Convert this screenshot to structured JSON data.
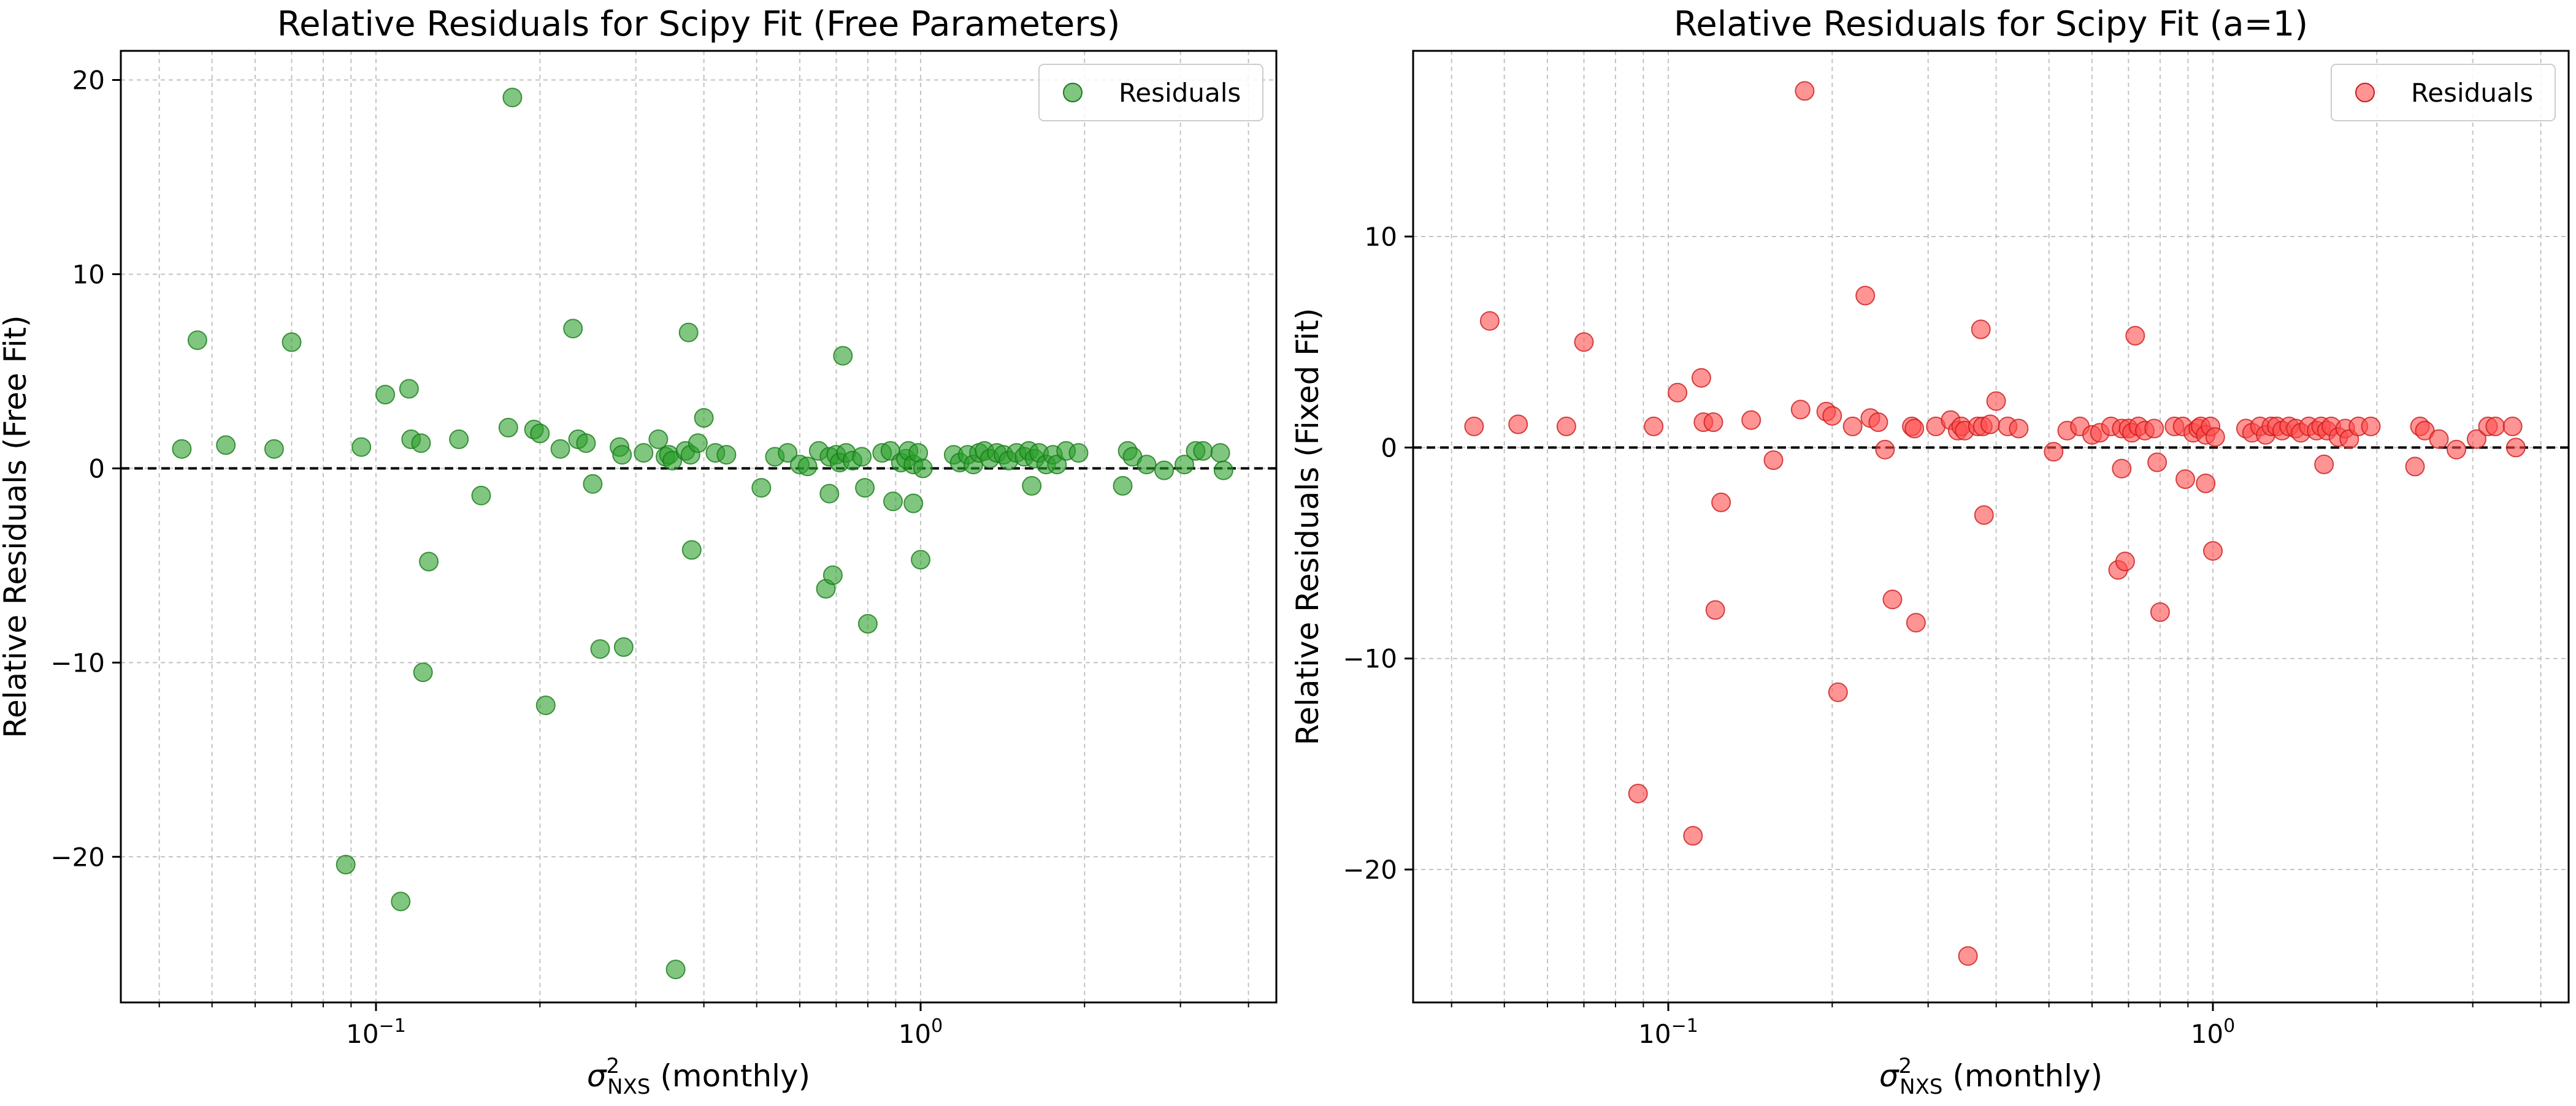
{
  "chart_data": [
    {
      "type": "scatter",
      "title": "Relative Residuals for Scipy Fit (Free Parameters)",
      "xlabel": "σ²NXS (monthly)",
      "xlabel_parts": {
        "symbol": "σ",
        "sup": "2",
        "sub": "NXS",
        "suffix": " (monthly)"
      },
      "ylabel": "Relative Residuals (Free Fit)",
      "xscale": "log",
      "xlim": [
        0.034,
        4.5
      ],
      "ylim": [
        -27.5,
        21.5
      ],
      "yticks": [
        -20,
        -10,
        0,
        10,
        20
      ],
      "yticklabels": [
        "−20",
        "−10",
        "0",
        "10",
        "20"
      ],
      "xticks": [
        {
          "value": 0.1,
          "base": "10",
          "exp": "−1"
        },
        {
          "value": 1,
          "base": "10",
          "exp": "0"
        }
      ],
      "grid": true,
      "reference_line": 0,
      "legend": {
        "position": "top-right",
        "label": "Residuals"
      },
      "color": "#2ca02c",
      "edge_color": "#1a7a1a",
      "series": [
        {
          "name": "Residuals",
          "points": [
            [
              0.044,
              1.0
            ],
            [
              0.047,
              6.6
            ],
            [
              0.053,
              1.2
            ],
            [
              0.065,
              1.0
            ],
            [
              0.07,
              6.5
            ],
            [
              0.088,
              -20.4
            ],
            [
              0.094,
              1.1
            ],
            [
              0.104,
              3.8
            ],
            [
              0.111,
              -22.3
            ],
            [
              0.115,
              4.1
            ],
            [
              0.116,
              1.5
            ],
            [
              0.121,
              1.3
            ],
            [
              0.122,
              -10.5
            ],
            [
              0.125,
              -4.8
            ],
            [
              0.142,
              1.5
            ],
            [
              0.156,
              -1.4
            ],
            [
              0.175,
              2.1
            ],
            [
              0.178,
              19.1
            ],
            [
              0.195,
              2.0
            ],
            [
              0.2,
              1.8
            ],
            [
              0.205,
              -12.2
            ],
            [
              0.218,
              1.0
            ],
            [
              0.23,
              7.2
            ],
            [
              0.235,
              1.5
            ],
            [
              0.243,
              1.3
            ],
            [
              0.25,
              -0.8
            ],
            [
              0.258,
              -9.3
            ],
            [
              0.28,
              1.1
            ],
            [
              0.283,
              0.7
            ],
            [
              0.285,
              -9.2
            ],
            [
              0.31,
              0.8
            ],
            [
              0.33,
              1.5
            ],
            [
              0.34,
              0.6
            ],
            [
              0.345,
              0.7
            ],
            [
              0.35,
              0.4
            ],
            [
              0.355,
              -25.8
            ],
            [
              0.37,
              0.9
            ],
            [
              0.375,
              7.0
            ],
            [
              0.378,
              0.7
            ],
            [
              0.38,
              -4.2
            ],
            [
              0.39,
              1.3
            ],
            [
              0.4,
              2.6
            ],
            [
              0.42,
              0.8
            ],
            [
              0.44,
              0.7
            ],
            [
              0.51,
              -1.0
            ],
            [
              0.54,
              0.6
            ],
            [
              0.57,
              0.8
            ],
            [
              0.6,
              0.2
            ],
            [
              0.62,
              0.1
            ],
            [
              0.65,
              0.9
            ],
            [
              0.67,
              -6.2
            ],
            [
              0.68,
              0.6
            ],
            [
              0.68,
              -1.3
            ],
            [
              0.69,
              -5.5
            ],
            [
              0.7,
              0.7
            ],
            [
              0.71,
              0.3
            ],
            [
              0.72,
              5.8
            ],
            [
              0.73,
              0.8
            ],
            [
              0.75,
              0.4
            ],
            [
              0.78,
              0.6
            ],
            [
              0.79,
              -1.0
            ],
            [
              0.8,
              -8.0
            ],
            [
              0.85,
              0.8
            ],
            [
              0.88,
              0.9
            ],
            [
              0.89,
              -1.7
            ],
            [
              0.92,
              0.3
            ],
            [
              0.94,
              0.5
            ],
            [
              0.95,
              0.9
            ],
            [
              0.97,
              0.2
            ],
            [
              0.97,
              -1.8
            ],
            [
              0.99,
              0.8
            ],
            [
              1.0,
              -4.7
            ],
            [
              1.01,
              0.0
            ],
            [
              1.15,
              0.7
            ],
            [
              1.18,
              0.3
            ],
            [
              1.22,
              0.7
            ],
            [
              1.25,
              0.2
            ],
            [
              1.28,
              0.8
            ],
            [
              1.31,
              0.9
            ],
            [
              1.34,
              0.5
            ],
            [
              1.38,
              0.8
            ],
            [
              1.42,
              0.7
            ],
            [
              1.45,
              0.4
            ],
            [
              1.5,
              0.8
            ],
            [
              1.55,
              0.6
            ],
            [
              1.58,
              0.9
            ],
            [
              1.6,
              -0.9
            ],
            [
              1.62,
              0.5
            ],
            [
              1.65,
              0.8
            ],
            [
              1.7,
              0.2
            ],
            [
              1.75,
              0.7
            ],
            [
              1.78,
              0.2
            ],
            [
              1.85,
              0.9
            ],
            [
              1.95,
              0.8
            ],
            [
              2.35,
              -0.9
            ],
            [
              2.4,
              0.9
            ],
            [
              2.45,
              0.6
            ],
            [
              2.6,
              0.2
            ],
            [
              2.8,
              -0.1
            ],
            [
              3.05,
              0.2
            ],
            [
              3.2,
              0.9
            ],
            [
              3.3,
              0.9
            ],
            [
              3.55,
              0.8
            ],
            [
              3.6,
              -0.1
            ]
          ]
        }
      ]
    },
    {
      "type": "scatter",
      "title": "Relative Residuals for Scipy Fit (a=1)",
      "xlabel": "σ²NXS (monthly)",
      "xlabel_parts": {
        "symbol": "σ",
        "sup": "2",
        "sub": "NXS",
        "suffix": " (monthly)"
      },
      "ylabel": "Relative Residuals (Fixed Fit)",
      "xscale": "log",
      "xlim": [
        0.034,
        4.5
      ],
      "ylim": [
        -26.3,
        18.8
      ],
      "yticks": [
        -20,
        -10,
        0,
        10
      ],
      "yticklabels": [
        "−20",
        "−10",
        "0",
        "10"
      ],
      "xticks": [
        {
          "value": 0.1,
          "base": "10",
          "exp": "−1"
        },
        {
          "value": 1,
          "base": "10",
          "exp": "0"
        }
      ],
      "grid": true,
      "reference_line": 0,
      "legend": {
        "position": "top-right",
        "label": "Residuals"
      },
      "color": "#ff4d4d",
      "edge_color": "#cc1a1a",
      "series": [
        {
          "name": "Residuals",
          "points": [
            [
              0.044,
              1.0
            ],
            [
              0.047,
              6.0
            ],
            [
              0.053,
              1.1
            ],
            [
              0.065,
              1.0
            ],
            [
              0.07,
              5.0
            ],
            [
              0.088,
              -16.4
            ],
            [
              0.094,
              1.0
            ],
            [
              0.104,
              2.6
            ],
            [
              0.111,
              -18.4
            ],
            [
              0.115,
              3.3
            ],
            [
              0.116,
              1.2
            ],
            [
              0.121,
              1.2
            ],
            [
              0.122,
              -7.7
            ],
            [
              0.125,
              -2.6
            ],
            [
              0.142,
              1.3
            ],
            [
              0.156,
              -0.6
            ],
            [
              0.175,
              1.8
            ],
            [
              0.178,
              16.9
            ],
            [
              0.195,
              1.7
            ],
            [
              0.2,
              1.5
            ],
            [
              0.205,
              -11.6
            ],
            [
              0.218,
              1.0
            ],
            [
              0.23,
              7.2
            ],
            [
              0.235,
              1.4
            ],
            [
              0.243,
              1.2
            ],
            [
              0.25,
              -0.1
            ],
            [
              0.258,
              -7.2
            ],
            [
              0.28,
              1.0
            ],
            [
              0.283,
              0.9
            ],
            [
              0.285,
              -8.3
            ],
            [
              0.31,
              1.0
            ],
            [
              0.33,
              1.3
            ],
            [
              0.34,
              0.8
            ],
            [
              0.345,
              1.0
            ],
            [
              0.35,
              0.8
            ],
            [
              0.355,
              -24.1
            ],
            [
              0.37,
              1.0
            ],
            [
              0.375,
              5.6
            ],
            [
              0.378,
              1.0
            ],
            [
              0.38,
              -3.2
            ],
            [
              0.39,
              1.1
            ],
            [
              0.4,
              2.2
            ],
            [
              0.42,
              1.0
            ],
            [
              0.44,
              0.9
            ],
            [
              0.51,
              -0.2
            ],
            [
              0.54,
              0.8
            ],
            [
              0.57,
              1.0
            ],
            [
              0.6,
              0.6
            ],
            [
              0.62,
              0.7
            ],
            [
              0.65,
              1.0
            ],
            [
              0.67,
              -5.8
            ],
            [
              0.68,
              0.9
            ],
            [
              0.68,
              -1.0
            ],
            [
              0.69,
              -5.4
            ],
            [
              0.7,
              0.9
            ],
            [
              0.71,
              0.7
            ],
            [
              0.72,
              5.3
            ],
            [
              0.73,
              1.0
            ],
            [
              0.75,
              0.8
            ],
            [
              0.78,
              0.9
            ],
            [
              0.79,
              -0.7
            ],
            [
              0.8,
              -7.8
            ],
            [
              0.85,
              1.0
            ],
            [
              0.88,
              1.0
            ],
            [
              0.89,
              -1.5
            ],
            [
              0.92,
              0.7
            ],
            [
              0.94,
              0.9
            ],
            [
              0.95,
              1.0
            ],
            [
              0.97,
              0.6
            ],
            [
              0.97,
              -1.7
            ],
            [
              0.99,
              1.0
            ],
            [
              1.0,
              -4.9
            ],
            [
              1.01,
              0.5
            ],
            [
              1.15,
              0.9
            ],
            [
              1.18,
              0.7
            ],
            [
              1.22,
              1.0
            ],
            [
              1.25,
              0.6
            ],
            [
              1.28,
              1.0
            ],
            [
              1.31,
              1.0
            ],
            [
              1.34,
              0.8
            ],
            [
              1.38,
              1.0
            ],
            [
              1.42,
              0.9
            ],
            [
              1.45,
              0.7
            ],
            [
              1.5,
              1.0
            ],
            [
              1.55,
              0.8
            ],
            [
              1.58,
              1.0
            ],
            [
              1.6,
              -0.8
            ],
            [
              1.62,
              0.8
            ],
            [
              1.65,
              1.0
            ],
            [
              1.7,
              0.5
            ],
            [
              1.75,
              0.9
            ],
            [
              1.78,
              0.4
            ],
            [
              1.85,
              1.0
            ],
            [
              1.95,
              1.0
            ],
            [
              2.35,
              -0.9
            ],
            [
              2.4,
              1.0
            ],
            [
              2.45,
              0.8
            ],
            [
              2.6,
              0.4
            ],
            [
              2.8,
              -0.1
            ],
            [
              3.05,
              0.4
            ],
            [
              3.2,
              1.0
            ],
            [
              3.3,
              1.0
            ],
            [
              3.55,
              1.0
            ],
            [
              3.6,
              0.0
            ]
          ]
        }
      ]
    }
  ]
}
